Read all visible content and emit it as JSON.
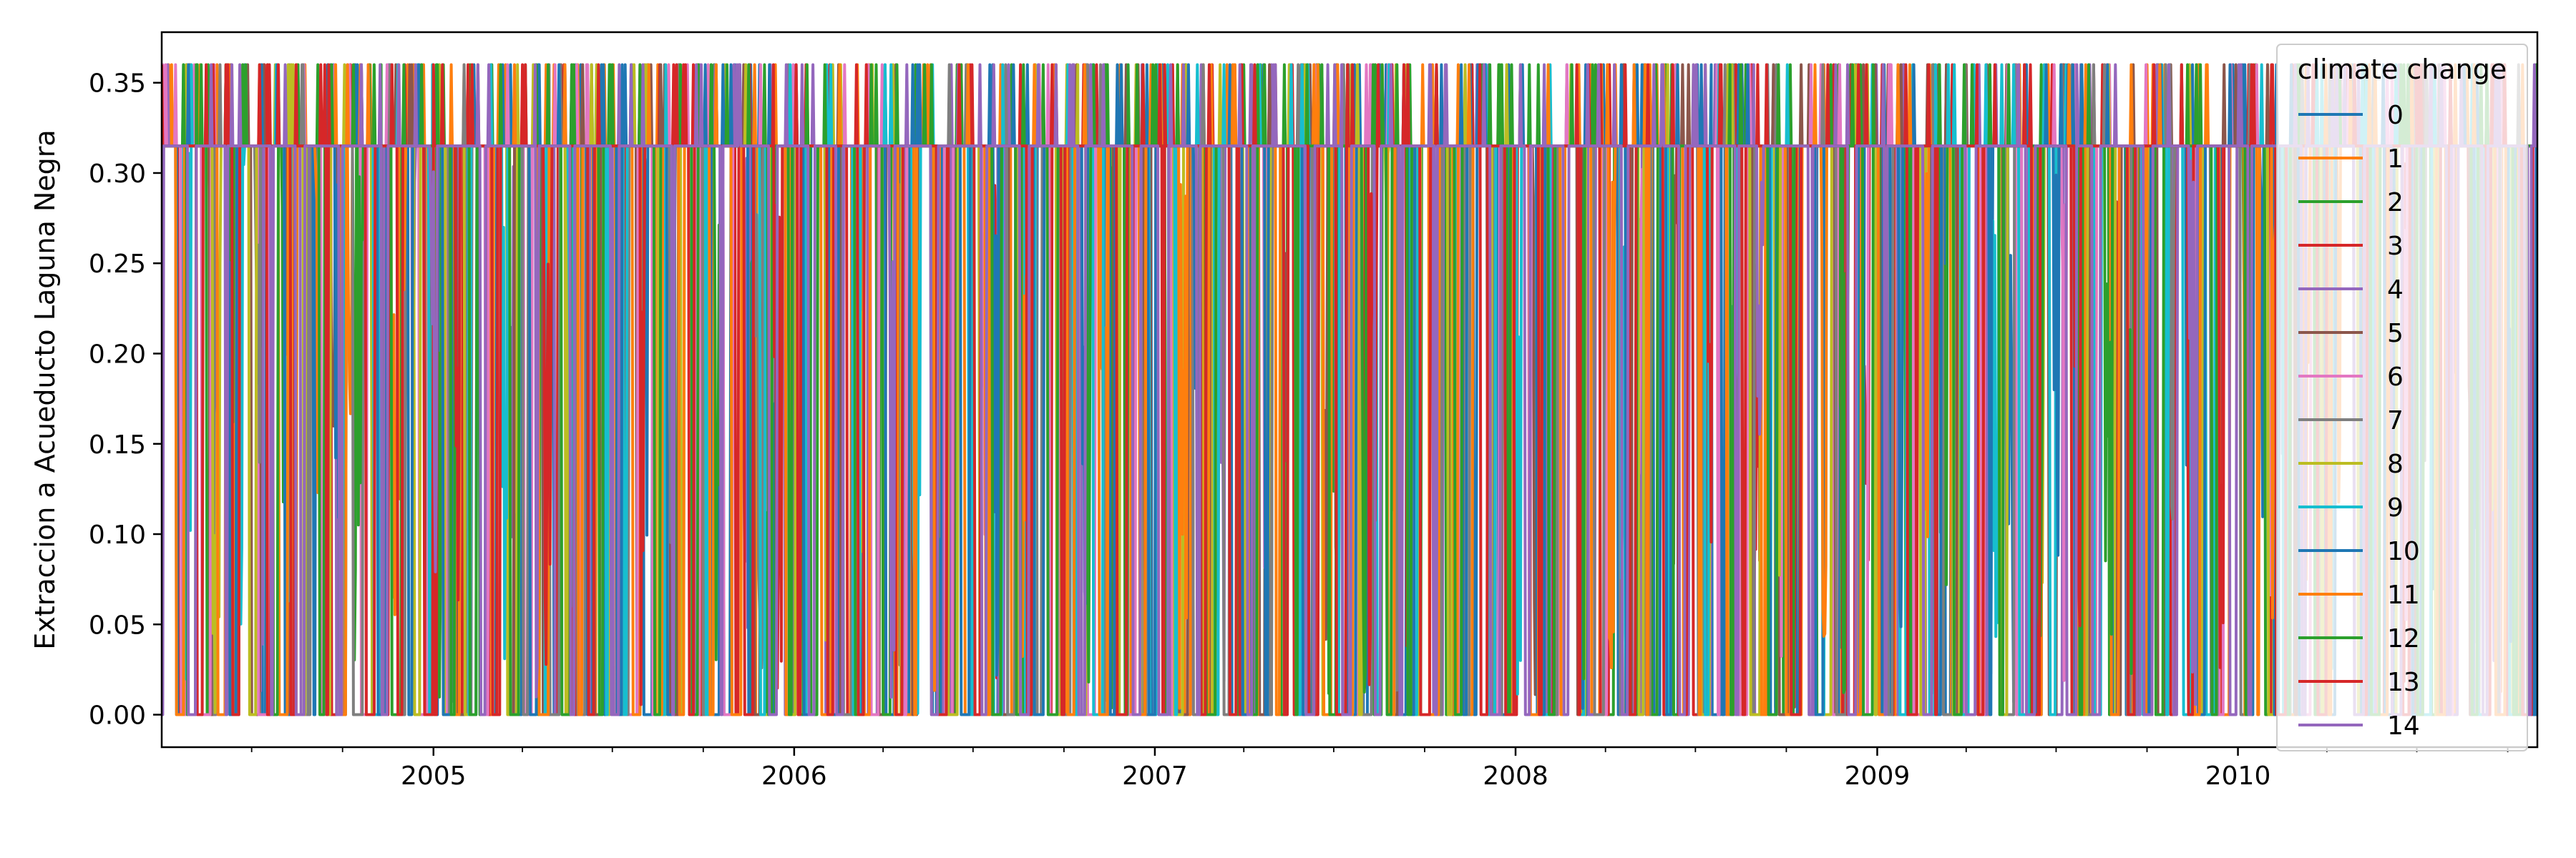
{
  "chart_data": {
    "type": "line",
    "title": "",
    "xlabel": "",
    "ylabel": "Extraccion a Acueducto Laguna Negra",
    "xlim": [
      "2004-04-01",
      "2010-10-31"
    ],
    "ylim": [
      -0.018,
      0.378
    ],
    "x_ticks": [
      {
        "date": "2005-01-01",
        "label": "2005"
      },
      {
        "date": "2006-01-01",
        "label": "2006"
      },
      {
        "date": "2007-01-01",
        "label": "2007"
      },
      {
        "date": "2008-01-01",
        "label": "2008"
      },
      {
        "date": "2009-01-01",
        "label": "2009"
      },
      {
        "date": "2010-01-01",
        "label": "2010"
      }
    ],
    "x_minor_ticks": [
      "2004-07-01",
      "2004-10-01",
      "2005-04-01",
      "2005-07-01",
      "2005-10-01",
      "2006-04-01",
      "2006-07-01",
      "2006-10-01",
      "2007-04-01",
      "2007-07-01",
      "2007-10-01",
      "2008-04-01",
      "2008-07-01",
      "2008-10-01",
      "2009-04-01",
      "2009-07-01",
      "2009-10-01",
      "2010-04-01",
      "2010-07-01",
      "2010-10-01"
    ],
    "y_ticks": [
      0.0,
      0.05,
      0.1,
      0.15,
      0.2,
      0.25,
      0.3,
      0.35
    ],
    "y_tick_labels": [
      "0.00",
      "0.05",
      "0.10",
      "0.15",
      "0.20",
      "0.25",
      "0.30",
      "0.35"
    ],
    "grid": false,
    "legend": {
      "title": "climate change",
      "placement": "top-right"
    },
    "baseline_value": 0.315,
    "peak_value": 0.36,
    "start_date": "2004-04-01",
    "end_date": "2010-10-31",
    "series": [
      {
        "name": "0",
        "color": "#1f77b4",
        "seed": 11
      },
      {
        "name": "1",
        "color": "#ff7f0e",
        "seed": 23
      },
      {
        "name": "2",
        "color": "#2ca02c",
        "seed": 37
      },
      {
        "name": "3",
        "color": "#d62728",
        "seed": 41
      },
      {
        "name": "4",
        "color": "#9467bd",
        "seed": 53
      },
      {
        "name": "5",
        "color": "#8c564b",
        "seed": 67
      },
      {
        "name": "6",
        "color": "#e377c2",
        "seed": 71
      },
      {
        "name": "7",
        "color": "#7f7f7f",
        "seed": 83
      },
      {
        "name": "8",
        "color": "#bcbd22",
        "seed": 97
      },
      {
        "name": "9",
        "color": "#17becf",
        "seed": 101
      },
      {
        "name": "10",
        "color": "#1f77b4",
        "seed": 113
      },
      {
        "name": "11",
        "color": "#ff7f0e",
        "seed": 127
      },
      {
        "name": "12",
        "color": "#2ca02c",
        "seed": 131
      },
      {
        "name": "13",
        "color": "#d62728",
        "seed": 149
      },
      {
        "name": "14",
        "color": "#9467bd",
        "seed": 157
      }
    ]
  }
}
